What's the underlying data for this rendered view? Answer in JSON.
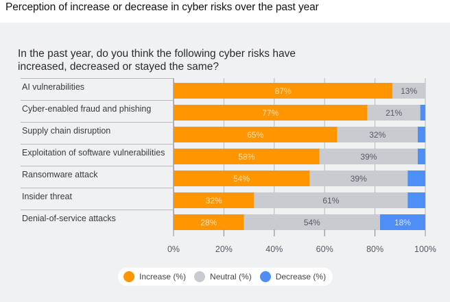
{
  "page_title": "Perception of increase or decrease in cyber risks over the past year",
  "chart_data": {
    "type": "bar",
    "orientation": "horizontal",
    "stacked": true,
    "title": "In the past year, do you think the following cyber risks have increased, decreased or stayed the same?",
    "xlabel": "",
    "ylabel": "",
    "xlim": [
      0,
      100
    ],
    "x_ticks": [
      "0%",
      "20%",
      "40%",
      "60%",
      "80%",
      "100%"
    ],
    "x_tick_values": [
      0,
      20,
      40,
      60,
      80,
      100
    ],
    "grid": true,
    "legend_position": "bottom",
    "categories": [
      "AI vulnerabilities",
      "Cyber-enabled fraud and phishing",
      "Supply chain disruption",
      "Exploitation of software vulnerabilities",
      "Ransomware attack",
      "Insider threat",
      "Denial-of-service attacks"
    ],
    "series": [
      {
        "name": "Increase (%)",
        "color": "#ff9500",
        "label_color": "#ffe2b8",
        "values": [
          87,
          77,
          65,
          58,
          54,
          32,
          28
        ],
        "labels": [
          "87%",
          "77%",
          "65%",
          "58%",
          "54%",
          "32%",
          "28%"
        ]
      },
      {
        "name": "Neutral (%)",
        "color": "#c8ccd1",
        "label_color": "#555a60",
        "values": [
          13,
          21,
          32,
          39,
          39,
          61,
          54
        ],
        "labels": [
          "13%",
          "21%",
          "32%",
          "39%",
          "39%",
          "61%",
          "54%"
        ]
      },
      {
        "name": "Decrease (%)",
        "color": "#4f8ef7",
        "label_color": "#dbe8ff",
        "values": [
          1,
          2,
          3,
          3,
          7,
          7,
          18
        ],
        "labels": [
          "",
          "",
          "",
          "",
          "",
          "",
          "18%"
        ]
      }
    ]
  },
  "legend": {
    "items": [
      {
        "label": "Increase (%)",
        "color": "#ff9500"
      },
      {
        "label": "Neutral (%)",
        "color": "#c8ccd1"
      },
      {
        "label": "Decrease (%)",
        "color": "#4f8ef7"
      }
    ]
  }
}
